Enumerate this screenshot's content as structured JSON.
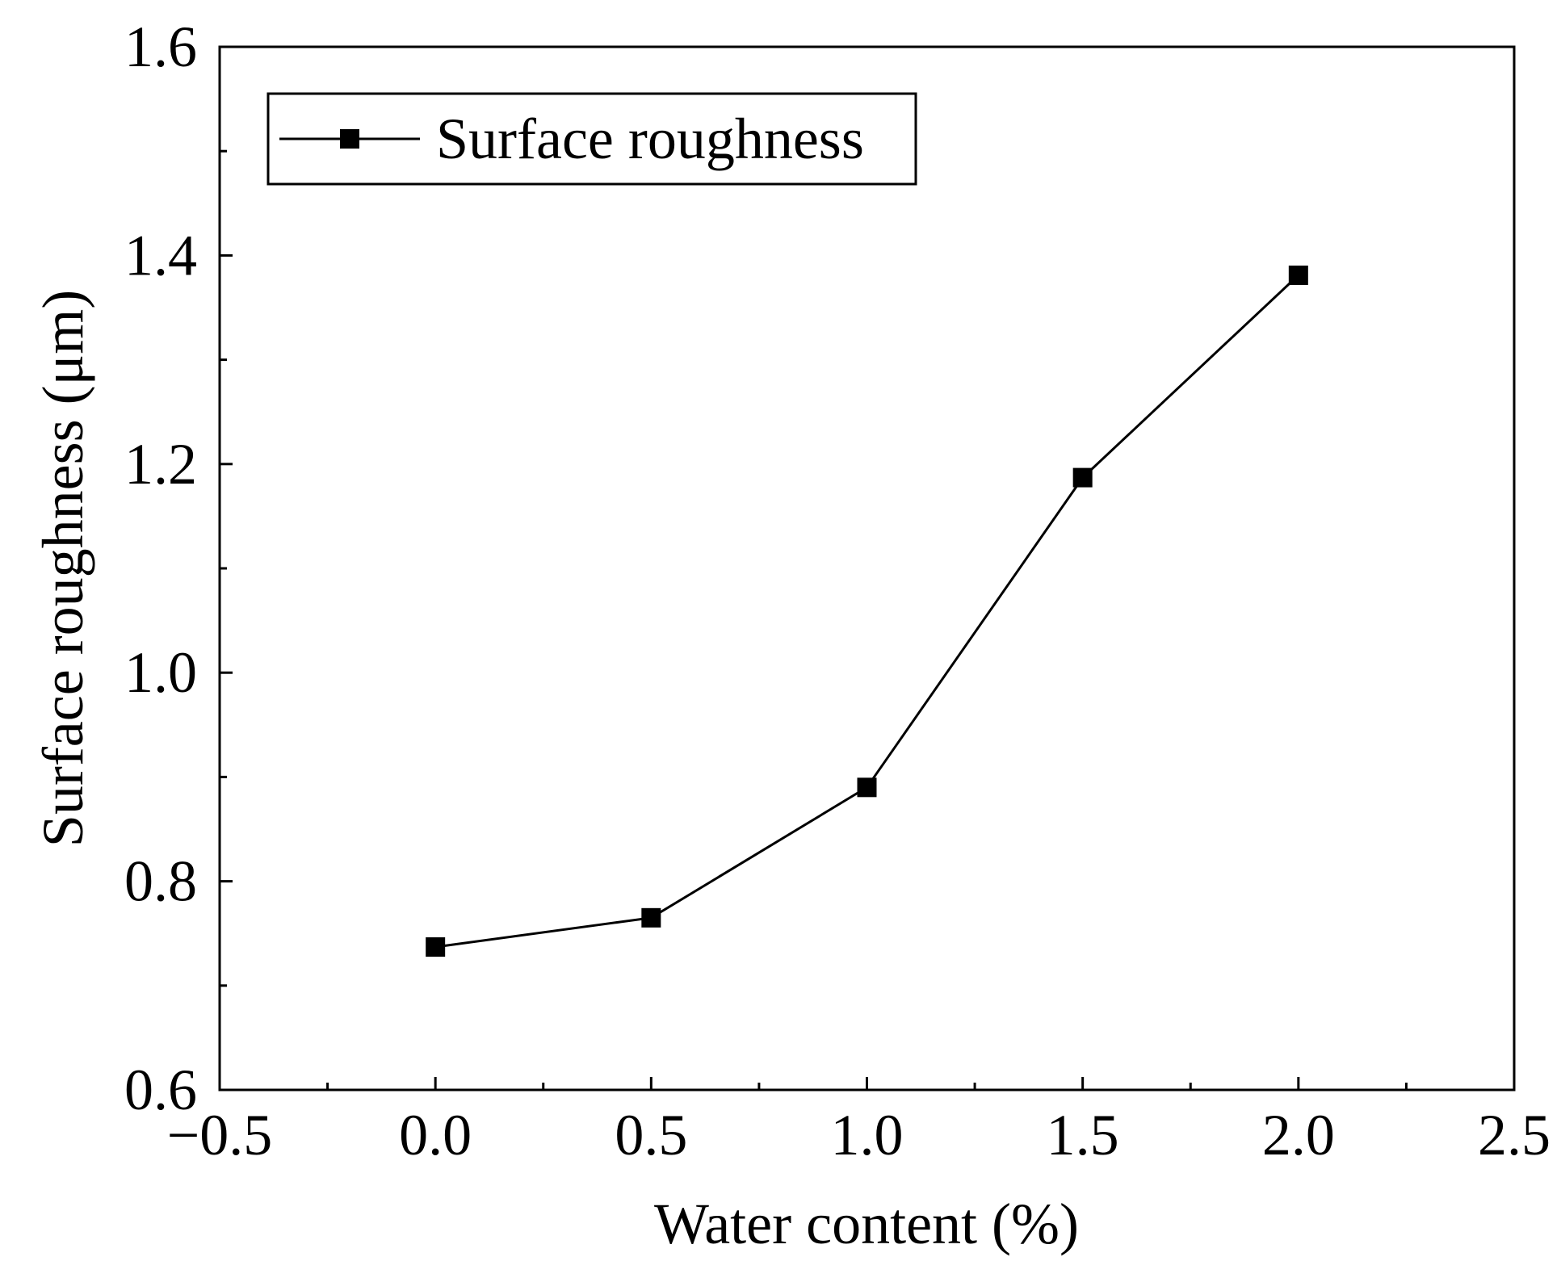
{
  "chart_data": {
    "type": "line",
    "title": "",
    "xlabel": "Water content (%)",
    "ylabel": "Surface roughness (μm)",
    "xlim": [
      -0.5,
      2.5
    ],
    "ylim": [
      0.6,
      1.6
    ],
    "xticks": [
      "−0.5",
      "0.0",
      "0.5",
      "1.0",
      "1.5",
      "2.0",
      "2.5"
    ],
    "xtick_values": [
      -0.5,
      0.0,
      0.5,
      1.0,
      1.5,
      2.0,
      2.5
    ],
    "yticks": [
      "0.6",
      "0.8",
      "1.0",
      "1.2",
      "1.4",
      "1.6"
    ],
    "ytick_values": [
      0.6,
      0.8,
      1.0,
      1.2,
      1.4,
      1.6
    ],
    "grid": false,
    "legend_position": "top-left",
    "series": [
      {
        "name": "Surface roughness",
        "marker": "square",
        "color": "#000000",
        "x": [
          0.0,
          0.5,
          1.0,
          1.5,
          2.0
        ],
        "y": [
          0.737,
          0.765,
          0.89,
          1.187,
          1.381
        ]
      }
    ]
  }
}
